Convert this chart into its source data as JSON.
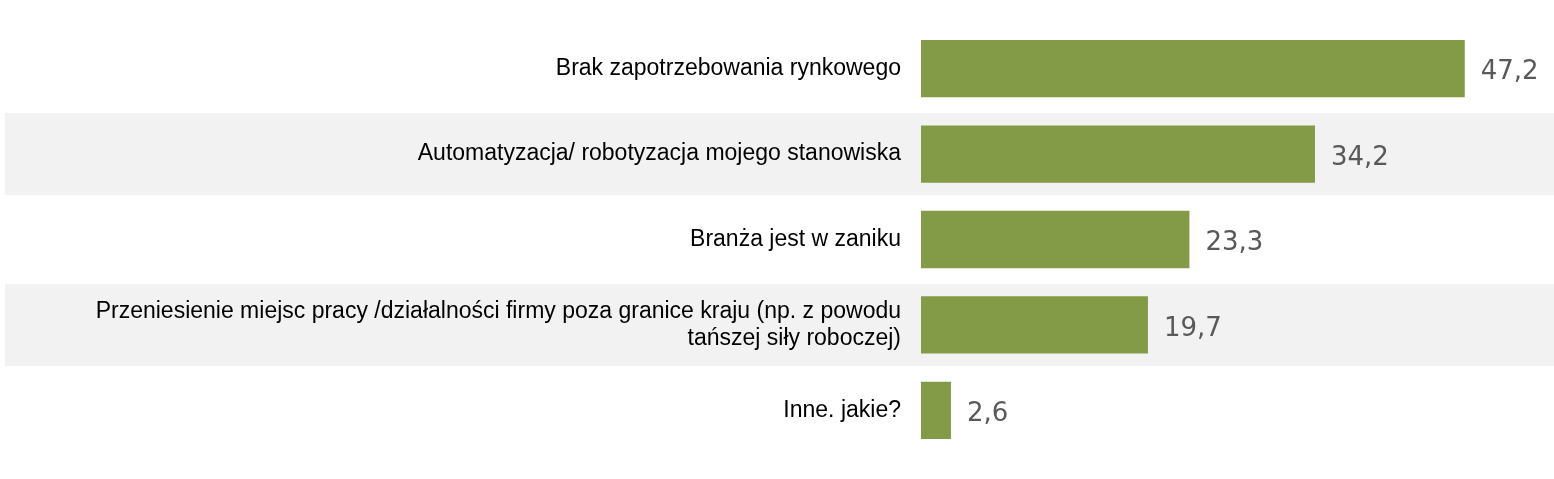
{
  "chart_data": {
    "type": "bar",
    "orientation": "horizontal",
    "categories": [
      "Brak zapotrzebowania rynkowego",
      "Automatyzacja/ robotyzacja mojego stanowiska",
      "Branża jest w zaniku",
      "Przeniesienie miejsc pracy /działalności firmy poza granice kraju (np. z powodu tańszej siły roboczej)",
      "Inne. jakie?"
    ],
    "values": [
      47.2,
      34.2,
      23.3,
      19.7,
      2.6
    ],
    "value_labels": [
      "47,2",
      "34,2",
      "23,3",
      "19,7",
      "2,6"
    ],
    "color": "#839b46",
    "grid": false,
    "legend": false,
    "tick_labels": "y"
  }
}
